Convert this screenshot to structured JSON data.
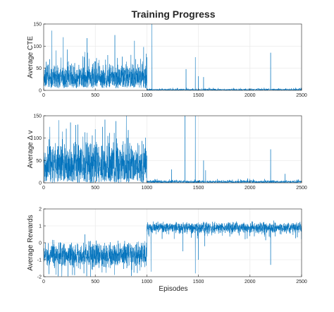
{
  "title": "Training Progress",
  "xlabel": "Episodes",
  "colors": {
    "line": "#0072bd",
    "grid": "#e6e6e6",
    "axis": "#262626"
  },
  "chart_data": [
    {
      "type": "line",
      "ylabel": "Average CTE",
      "xlim": [
        0,
        2500
      ],
      "ylim": [
        0,
        150
      ],
      "xticks": [
        0,
        500,
        1000,
        1500,
        2000,
        2500
      ],
      "yticks": [
        0,
        50,
        100,
        150
      ],
      "grid": true,
      "series": [
        {
          "x_range": [
            1,
            2500
          ],
          "phases": [
            {
              "x_range": [
                1,
                1000
              ],
              "baseline": 28,
              "noise": 14,
              "min": 5
            },
            {
              "x_range": [
                1001,
                2500
              ],
              "baseline": 1.5,
              "noise": 1,
              "min": 0
            }
          ],
          "notable_points": [
            {
              "x": 80,
              "y": 135
            },
            {
              "x": 190,
              "y": 120
            },
            {
              "x": 420,
              "y": 118
            },
            {
              "x": 690,
              "y": 125
            },
            {
              "x": 880,
              "y": 112
            },
            {
              "x": 1050,
              "y": 150
            },
            {
              "x": 1380,
              "y": 48
            },
            {
              "x": 1470,
              "y": 75
            },
            {
              "x": 1500,
              "y": 32
            },
            {
              "x": 1550,
              "y": 30
            },
            {
              "x": 2200,
              "y": 85
            },
            {
              "x": 2420,
              "y": 5
            }
          ]
        }
      ]
    },
    {
      "type": "line",
      "ylabel": "Average Δ v",
      "xlim": [
        0,
        2500
      ],
      "ylim": [
        0,
        150
      ],
      "xticks": [
        0,
        500,
        1000,
        1500,
        2000,
        2500
      ],
      "yticks": [
        0,
        50,
        100,
        150
      ],
      "grid": true,
      "series": [
        {
          "x_range": [
            1,
            2500
          ],
          "phases": [
            {
              "x_range": [
                1,
                1000
              ],
              "baseline": 38,
              "noise": 24,
              "min": 0
            },
            {
              "x_range": [
                1001,
                2500
              ],
              "baseline": 2,
              "noise": 1.5,
              "min": 0
            }
          ],
          "notable_points": [
            {
              "x": 60,
              "y": 125
            },
            {
              "x": 145,
              "y": 140
            },
            {
              "x": 260,
              "y": 135
            },
            {
              "x": 500,
              "y": 120
            },
            {
              "x": 700,
              "y": 138
            },
            {
              "x": 820,
              "y": 118
            },
            {
              "x": 1240,
              "y": 30
            },
            {
              "x": 1370,
              "y": 150
            },
            {
              "x": 1470,
              "y": 150
            },
            {
              "x": 1550,
              "y": 50
            },
            {
              "x": 1570,
              "y": 28
            },
            {
              "x": 2200,
              "y": 75
            },
            {
              "x": 2340,
              "y": 20
            }
          ]
        }
      ]
    },
    {
      "type": "line",
      "ylabel": "Average Rewards",
      "xlim": [
        0,
        2500
      ],
      "ylim": [
        -2,
        2
      ],
      "xticks": [
        0,
        500,
        1000,
        1500,
        2000,
        2500
      ],
      "yticks": [
        -2,
        -1,
        0,
        1,
        2
      ],
      "grid": true,
      "series": [
        {
          "x_range": [
            1,
            2500
          ],
          "phases": [
            {
              "x_range": [
                1,
                1000
              ],
              "baseline": -0.7,
              "noise": 0.35,
              "min": -2
            },
            {
              "x_range": [
                1001,
                2500
              ],
              "baseline": 0.9,
              "noise": 0.15,
              "min": -2
            }
          ],
          "notable_points": [
            {
              "x": 400,
              "y": 0.5
            },
            {
              "x": 1040,
              "y": -1.7
            },
            {
              "x": 1350,
              "y": -0.5
            },
            {
              "x": 1470,
              "y": -1.8
            },
            {
              "x": 1500,
              "y": -1
            },
            {
              "x": 1560,
              "y": -0.2
            },
            {
              "x": 2200,
              "y": -1.3
            }
          ]
        }
      ]
    }
  ]
}
